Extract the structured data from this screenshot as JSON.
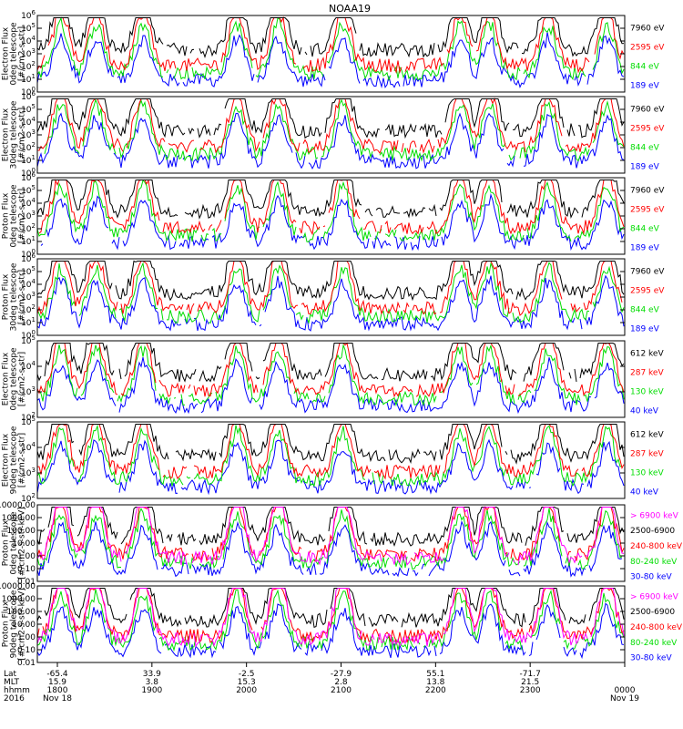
{
  "title": "NOAA19",
  "panels": [
    {
      "id": "ted-electron-0deg",
      "ylabel": [
        "TED",
        "Electron Flux",
        "0deg telescope",
        "[#/cm2-s-str]"
      ],
      "ytick_labels": [
        "10^0",
        "10^1",
        "10^2",
        "10^3",
        "10^4",
        "10^5",
        "10^6"
      ],
      "channels": [
        {
          "label": "7960 eV",
          "color": "#000000"
        },
        {
          "label": "2595 eV",
          "color": "#ff0000"
        },
        {
          "label": "844 eV",
          "color": "#00dd00"
        },
        {
          "label": "189 eV",
          "color": "#0000ff"
        }
      ]
    },
    {
      "id": "ted-electron-30deg",
      "ylabel": [
        "TED",
        "Electron Flux",
        "30deg telescope",
        "[#/cm2-s-str]"
      ],
      "ytick_labels": [
        "10^0",
        "10^1",
        "10^2",
        "10^3",
        "10^4",
        "10^5",
        "10^6"
      ],
      "channels": [
        {
          "label": "7960 eV",
          "color": "#000000"
        },
        {
          "label": "2595 eV",
          "color": "#ff0000"
        },
        {
          "label": "844 eV",
          "color": "#00dd00"
        },
        {
          "label": "189 eV",
          "color": "#0000ff"
        }
      ]
    },
    {
      "id": "ted-proton-0deg",
      "ylabel": [
        "TED",
        "Proton Flux",
        "0deg telescope",
        "[#/cm2-s-str]"
      ],
      "ytick_labels": [
        "10^0",
        "10^1",
        "10^2",
        "10^3",
        "10^4",
        "10^5",
        "10^6"
      ],
      "channels": [
        {
          "label": "7960 eV",
          "color": "#000000"
        },
        {
          "label": "2595 eV",
          "color": "#ff0000"
        },
        {
          "label": "844 eV",
          "color": "#00dd00"
        },
        {
          "label": "189 eV",
          "color": "#0000ff"
        }
      ]
    },
    {
      "id": "ted-proton-30deg",
      "ylabel": [
        "TED",
        "Proton Flux",
        "30deg telescope",
        "[#/cm2-s-str]"
      ],
      "ytick_labels": [
        "10^0",
        "10^1",
        "10^2",
        "10^3",
        "10^4",
        "10^5",
        "10^6"
      ],
      "channels": [
        {
          "label": "7960 eV",
          "color": "#000000"
        },
        {
          "label": "2595 eV",
          "color": "#ff0000"
        },
        {
          "label": "844 eV",
          "color": "#00dd00"
        },
        {
          "label": "189 eV",
          "color": "#0000ff"
        }
      ]
    },
    {
      "id": "meped-electron-0deg",
      "ylabel": [
        "MEPED",
        "Electron Flux",
        "0deg telescope",
        "[#/cm2-s-str]"
      ],
      "ytick_labels": [
        "10^2",
        "10^3",
        "10^4",
        "10^5"
      ],
      "channels": [
        {
          "label": "612 keV",
          "color": "#000000"
        },
        {
          "label": "287 keV",
          "color": "#ff0000"
        },
        {
          "label": "130 keV",
          "color": "#00dd00"
        },
        {
          "label": "40 keV",
          "color": "#0000ff"
        }
      ]
    },
    {
      "id": "meped-electron-90deg",
      "ylabel": [
        "MEPED",
        "Electron Flux",
        "90deg telescope",
        "[#/cm2-s-str]"
      ],
      "ytick_labels": [
        "10^2",
        "10^3",
        "10^4",
        "10^5"
      ],
      "channels": [
        {
          "label": "612 keV",
          "color": "#000000"
        },
        {
          "label": "287 keV",
          "color": "#ff0000"
        },
        {
          "label": "130 keV",
          "color": "#00dd00"
        },
        {
          "label": "40 keV",
          "color": "#0000ff"
        }
      ]
    },
    {
      "id": "meped-proton-0deg",
      "ylabel": [
        "MEPED",
        "Proton Flux",
        "0deg telescope",
        "[#/cm2-s-str-keV]"
      ],
      "ytick_labels": [
        "0.01",
        "0.10",
        "1.00",
        "10.00",
        "100.00",
        "1000.00",
        "10000.00"
      ],
      "channels": [
        {
          "label": "> 6900 keV",
          "color": "#ff00ff"
        },
        {
          "label": "2500-6900",
          "color": "#000000"
        },
        {
          "label": "240-800 keV",
          "color": "#ff0000"
        },
        {
          "label": "80-240 keV",
          "color": "#00dd00"
        },
        {
          "label": "30-80 keV",
          "color": "#0000ff"
        }
      ]
    },
    {
      "id": "meped-proton-90deg",
      "ylabel": [
        "MEPED",
        "Proton Flux",
        "90deg telescope",
        "[#/cm2-s-str-keV]"
      ],
      "ytick_labels": [
        "0.01",
        "0.10",
        "1.00",
        "10.00",
        "100.00",
        "1000.00",
        "10000.00"
      ],
      "channels": [
        {
          "label": "> 6900 keV",
          "color": "#ff00ff"
        },
        {
          "label": "2500-6900",
          "color": "#000000"
        },
        {
          "label": "240-800 keV",
          "color": "#ff0000"
        },
        {
          "label": "80-240 keV",
          "color": "#00dd00"
        },
        {
          "label": "30-80 keV",
          "color": "#0000ff"
        }
      ]
    }
  ],
  "xaxis": {
    "row_labels": [
      "Lat",
      "MLT",
      "hhmm",
      "2016"
    ],
    "ticks": [
      {
        "lat": "-65.4",
        "mlt": "15.9",
        "hhmm": "1800",
        "date": "Nov 18"
      },
      {
        "lat": "33.9",
        "mlt": "3.8",
        "hhmm": "1900",
        "date": ""
      },
      {
        "lat": "-2.5",
        "mlt": "15.3",
        "hhmm": "2000",
        "date": ""
      },
      {
        "lat": "-27.9",
        "mlt": "2.8",
        "hhmm": "2100",
        "date": ""
      },
      {
        "lat": "55.1",
        "mlt": "13.8",
        "hhmm": "2200",
        "date": ""
      },
      {
        "lat": "-71.7",
        "mlt": "21.5",
        "hhmm": "2300",
        "date": ""
      },
      {
        "lat": "",
        "mlt": "",
        "hhmm": "0000",
        "date": "Nov 19"
      }
    ]
  },
  "chart_data": {
    "type": "line",
    "title": "NOAA19",
    "x": [
      "1800",
      "1900",
      "2000",
      "2100",
      "2200",
      "2300",
      "0000"
    ],
    "xlabel": "hhmm",
    "yscale": "log",
    "grid": false,
    "legend": "right",
    "panels": [
      {
        "name": "TED Electron Flux 0deg telescope",
        "ylim": [
          1,
          1000000
        ],
        "series": [
          "7960 eV",
          "2595 eV",
          "844 eV",
          "189 eV"
        ]
      },
      {
        "name": "TED Electron Flux 30deg telescope",
        "ylim": [
          1,
          1000000
        ],
        "series": [
          "7960 eV",
          "2595 eV",
          "844 eV",
          "189 eV"
        ]
      },
      {
        "name": "TED Proton Flux 0deg telescope",
        "ylim": [
          1,
          1000000
        ],
        "series": [
          "7960 eV",
          "2595 eV",
          "844 eV",
          "189 eV"
        ]
      },
      {
        "name": "TED Proton Flux 30deg telescope",
        "ylim": [
          1,
          1000000
        ],
        "series": [
          "7960 eV",
          "2595 eV",
          "844 eV",
          "189 eV"
        ]
      },
      {
        "name": "MEPED Electron Flux 0deg telescope",
        "ylim": [
          100,
          100000
        ],
        "series": [
          "612 keV",
          "287 keV",
          "130 keV",
          "40 keV"
        ]
      },
      {
        "name": "MEPED Electron Flux 90deg telescope",
        "ylim": [
          100,
          100000
        ],
        "series": [
          "612 keV",
          "287 keV",
          "130 keV",
          "40 keV"
        ]
      },
      {
        "name": "MEPED Proton Flux 0deg telescope",
        "ylim": [
          0.01,
          10000
        ],
        "series": [
          "> 6900 keV",
          "2500-6900",
          "240-800 keV",
          "80-240 keV",
          "30-80 keV"
        ]
      },
      {
        "name": "MEPED Proton Flux 90deg telescope",
        "ylim": [
          0.01,
          10000
        ],
        "series": [
          "> 6900 keV",
          "2500-6900",
          "240-800 keV",
          "80-240 keV",
          "30-80 keV"
        ]
      }
    ]
  }
}
